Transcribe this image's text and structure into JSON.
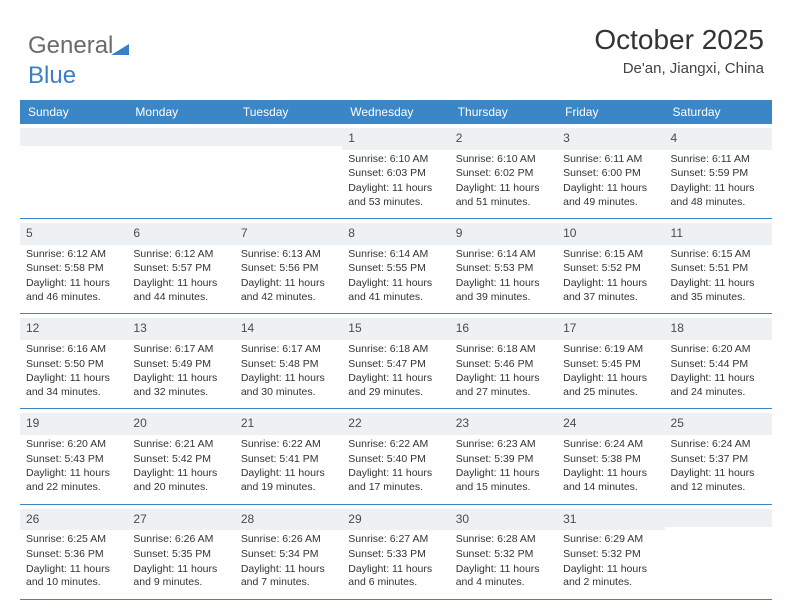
{
  "logo": {
    "text1": "General",
    "text2": "Blue"
  },
  "title": "October 2025",
  "location": "De'an, Jiangxi, China",
  "dayHeaders": [
    "Sunday",
    "Monday",
    "Tuesday",
    "Wednesday",
    "Thursday",
    "Friday",
    "Saturday"
  ],
  "colors": {
    "headerBg": "#3b86c7",
    "headerFg": "#ffffff",
    "dayNumBg": "#eef1f3",
    "borderColor": "#3b86c7",
    "logoGray": "#6b6b6b",
    "logoBlue": "#3b7fc4"
  },
  "weeks": [
    [
      {
        "n": "",
        "sr": "",
        "ss": "",
        "dl": ""
      },
      {
        "n": "",
        "sr": "",
        "ss": "",
        "dl": ""
      },
      {
        "n": "",
        "sr": "",
        "ss": "",
        "dl": ""
      },
      {
        "n": "1",
        "sr": "6:10 AM",
        "ss": "6:03 PM",
        "dl": "11 hours and 53 minutes."
      },
      {
        "n": "2",
        "sr": "6:10 AM",
        "ss": "6:02 PM",
        "dl": "11 hours and 51 minutes."
      },
      {
        "n": "3",
        "sr": "6:11 AM",
        "ss": "6:00 PM",
        "dl": "11 hours and 49 minutes."
      },
      {
        "n": "4",
        "sr": "6:11 AM",
        "ss": "5:59 PM",
        "dl": "11 hours and 48 minutes."
      }
    ],
    [
      {
        "n": "5",
        "sr": "6:12 AM",
        "ss": "5:58 PM",
        "dl": "11 hours and 46 minutes."
      },
      {
        "n": "6",
        "sr": "6:12 AM",
        "ss": "5:57 PM",
        "dl": "11 hours and 44 minutes."
      },
      {
        "n": "7",
        "sr": "6:13 AM",
        "ss": "5:56 PM",
        "dl": "11 hours and 42 minutes."
      },
      {
        "n": "8",
        "sr": "6:14 AM",
        "ss": "5:55 PM",
        "dl": "11 hours and 41 minutes."
      },
      {
        "n": "9",
        "sr": "6:14 AM",
        "ss": "5:53 PM",
        "dl": "11 hours and 39 minutes."
      },
      {
        "n": "10",
        "sr": "6:15 AM",
        "ss": "5:52 PM",
        "dl": "11 hours and 37 minutes."
      },
      {
        "n": "11",
        "sr": "6:15 AM",
        "ss": "5:51 PM",
        "dl": "11 hours and 35 minutes."
      }
    ],
    [
      {
        "n": "12",
        "sr": "6:16 AM",
        "ss": "5:50 PM",
        "dl": "11 hours and 34 minutes."
      },
      {
        "n": "13",
        "sr": "6:17 AM",
        "ss": "5:49 PM",
        "dl": "11 hours and 32 minutes."
      },
      {
        "n": "14",
        "sr": "6:17 AM",
        "ss": "5:48 PM",
        "dl": "11 hours and 30 minutes."
      },
      {
        "n": "15",
        "sr": "6:18 AM",
        "ss": "5:47 PM",
        "dl": "11 hours and 29 minutes."
      },
      {
        "n": "16",
        "sr": "6:18 AM",
        "ss": "5:46 PM",
        "dl": "11 hours and 27 minutes."
      },
      {
        "n": "17",
        "sr": "6:19 AM",
        "ss": "5:45 PM",
        "dl": "11 hours and 25 minutes."
      },
      {
        "n": "18",
        "sr": "6:20 AM",
        "ss": "5:44 PM",
        "dl": "11 hours and 24 minutes."
      }
    ],
    [
      {
        "n": "19",
        "sr": "6:20 AM",
        "ss": "5:43 PM",
        "dl": "11 hours and 22 minutes."
      },
      {
        "n": "20",
        "sr": "6:21 AM",
        "ss": "5:42 PM",
        "dl": "11 hours and 20 minutes."
      },
      {
        "n": "21",
        "sr": "6:22 AM",
        "ss": "5:41 PM",
        "dl": "11 hours and 19 minutes."
      },
      {
        "n": "22",
        "sr": "6:22 AM",
        "ss": "5:40 PM",
        "dl": "11 hours and 17 minutes."
      },
      {
        "n": "23",
        "sr": "6:23 AM",
        "ss": "5:39 PM",
        "dl": "11 hours and 15 minutes."
      },
      {
        "n": "24",
        "sr": "6:24 AM",
        "ss": "5:38 PM",
        "dl": "11 hours and 14 minutes."
      },
      {
        "n": "25",
        "sr": "6:24 AM",
        "ss": "5:37 PM",
        "dl": "11 hours and 12 minutes."
      }
    ],
    [
      {
        "n": "26",
        "sr": "6:25 AM",
        "ss": "5:36 PM",
        "dl": "11 hours and 10 minutes."
      },
      {
        "n": "27",
        "sr": "6:26 AM",
        "ss": "5:35 PM",
        "dl": "11 hours and 9 minutes."
      },
      {
        "n": "28",
        "sr": "6:26 AM",
        "ss": "5:34 PM",
        "dl": "11 hours and 7 minutes."
      },
      {
        "n": "29",
        "sr": "6:27 AM",
        "ss": "5:33 PM",
        "dl": "11 hours and 6 minutes."
      },
      {
        "n": "30",
        "sr": "6:28 AM",
        "ss": "5:32 PM",
        "dl": "11 hours and 4 minutes."
      },
      {
        "n": "31",
        "sr": "6:29 AM",
        "ss": "5:32 PM",
        "dl": "11 hours and 2 minutes."
      },
      {
        "n": "",
        "sr": "",
        "ss": "",
        "dl": ""
      }
    ]
  ],
  "labels": {
    "sunrise": "Sunrise:",
    "sunset": "Sunset:",
    "daylight": "Daylight:"
  }
}
